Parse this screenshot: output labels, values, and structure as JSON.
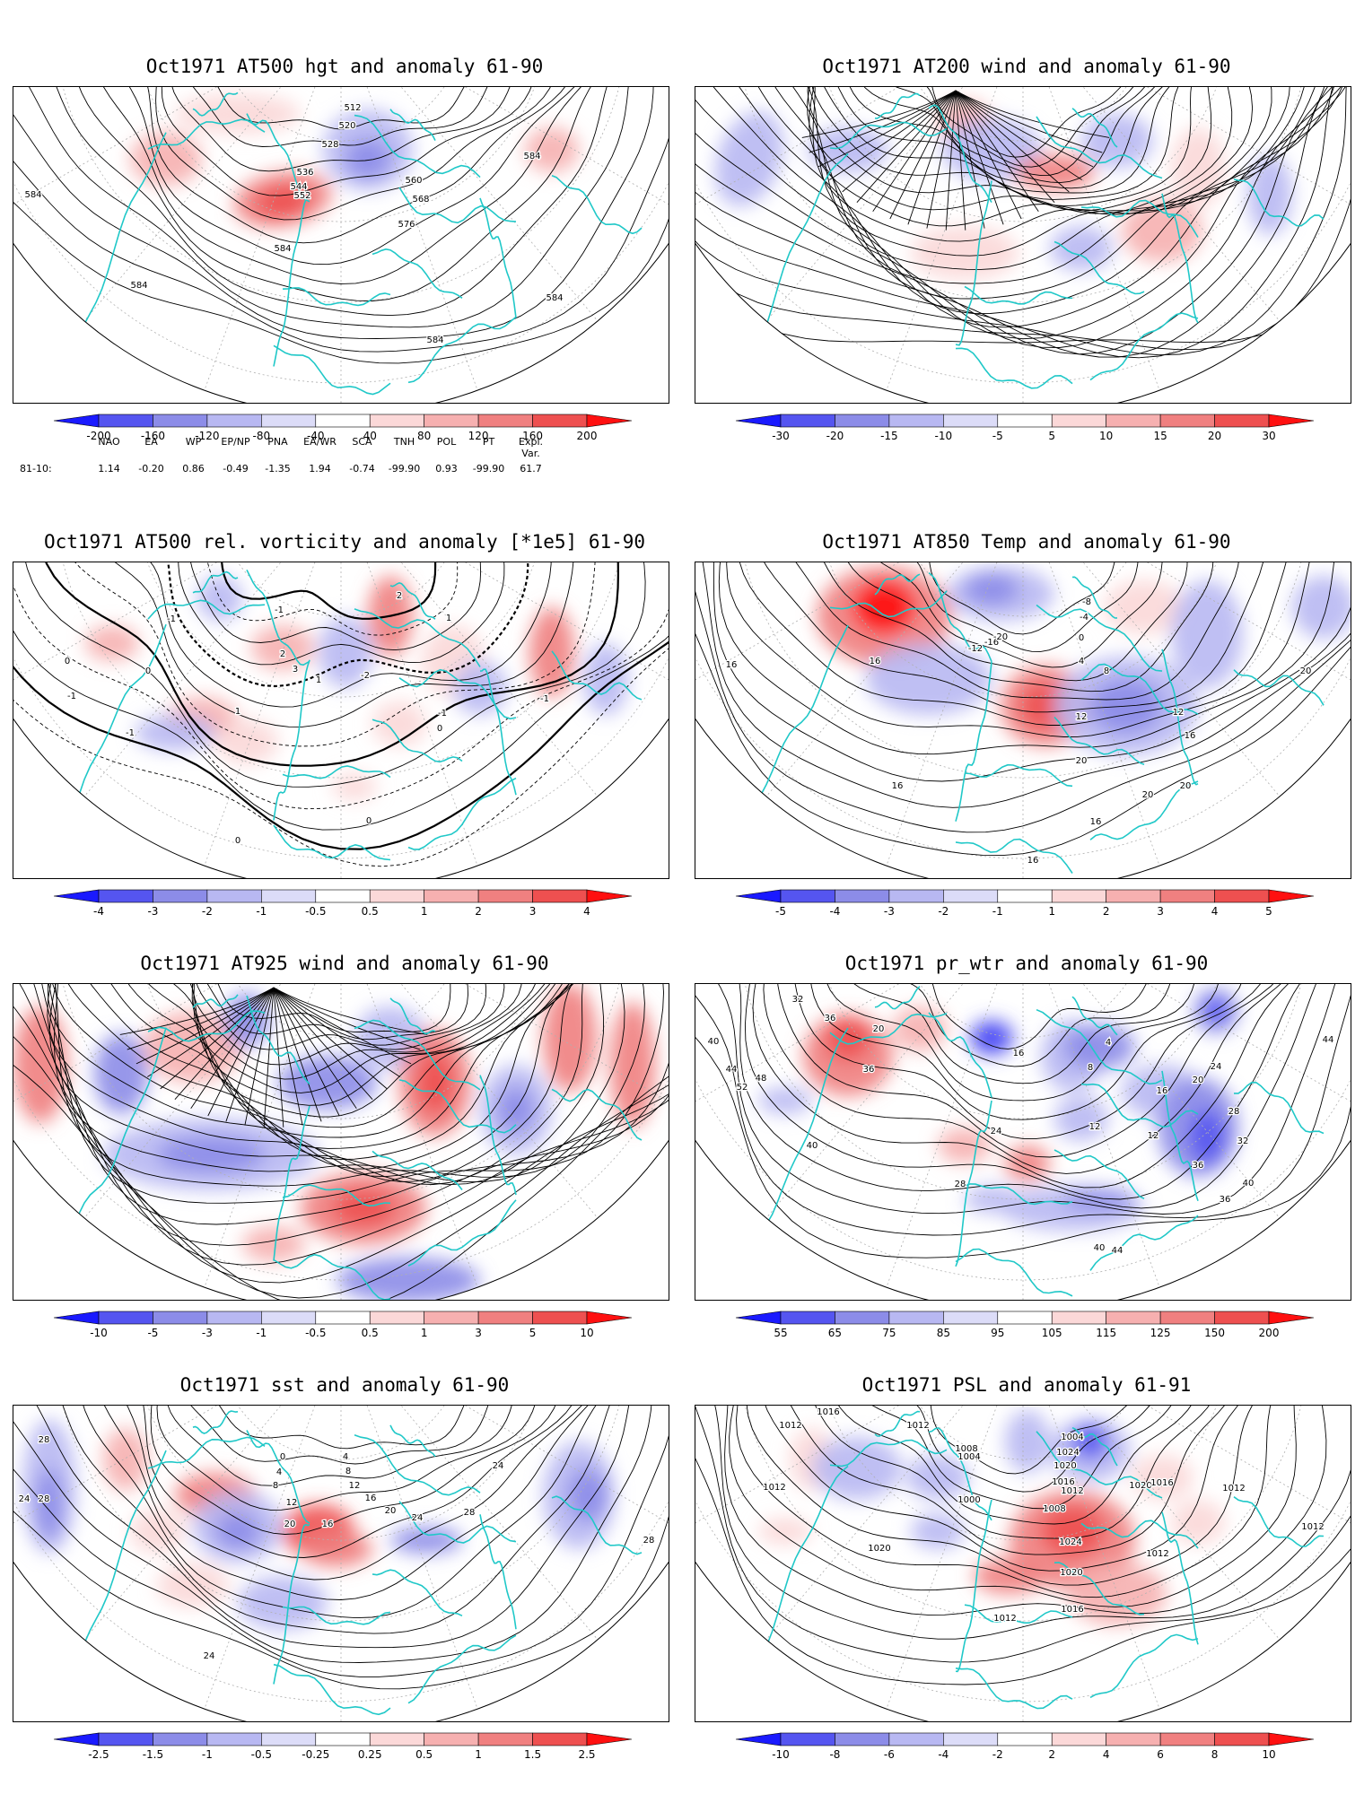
{
  "teleconnection": {
    "period_label": "81-10:",
    "headers": [
      "NAO",
      "EA",
      "WP",
      "EP/NP",
      "PNA",
      "EA/WR",
      "SCA",
      "TNH",
      "POL",
      "PT",
      "Expl. Var."
    ],
    "values": [
      "1.14",
      "-0.20",
      "0.86",
      "-0.49",
      "-1.35",
      "1.94",
      "-0.74",
      "-99.90",
      "0.93",
      "-99.90",
      "61.7"
    ]
  },
  "panels": [
    {
      "id": "p1",
      "title": "Oct1971 AT500 hgt and anomaly 61-90",
      "mode": "hgt",
      "contour_labels": [
        "512",
        "520",
        "528",
        "536",
        "544",
        "552",
        "560",
        "568",
        "576",
        "584",
        "584",
        "584",
        "584",
        "584",
        "584"
      ],
      "colorbar": {
        "ticks": [
          "-200",
          "-160",
          "-120",
          "-80",
          "-40",
          "40",
          "80",
          "120",
          "160",
          "200"
        ]
      }
    },
    {
      "id": "p2",
      "title": "Oct1971 AT200 wind and anomaly 61-90",
      "mode": "wind",
      "contour_labels": [],
      "colorbar": {
        "ticks": [
          "-30",
          "-20",
          "-15",
          "-10",
          "-5",
          "5",
          "10",
          "15",
          "20",
          "30"
        ]
      }
    },
    {
      "id": "p3",
      "title": "Oct1971 AT500 rel. vorticity and anomaly [*1e5] 61-90",
      "mode": "vort",
      "contour_labels": [
        "-1",
        "-1",
        "-1",
        "-1",
        "-2",
        "2",
        "3",
        "1",
        "1",
        "0",
        "0",
        "0",
        "0",
        "0",
        "-1",
        "-1",
        "2",
        "1"
      ],
      "colorbar": {
        "ticks": [
          "-4",
          "-3",
          "-2",
          "-1",
          "-0.5",
          "0.5",
          "1",
          "2",
          "3",
          "4"
        ]
      }
    },
    {
      "id": "p4",
      "title": "Oct1971 AT850 Temp and anomaly 61-90",
      "mode": "temp",
      "contour_labels": [
        "16",
        "16",
        "16",
        "16",
        "20",
        "20",
        "20",
        "20",
        "16",
        "12",
        "8",
        "4",
        "0",
        "-4",
        "-8",
        "-12",
        "-16",
        "-20",
        "12",
        "16"
      ],
      "colorbar": {
        "ticks": [
          "-5",
          "-4",
          "-3",
          "-2",
          "-1",
          "1",
          "2",
          "3",
          "4",
          "5"
        ]
      }
    },
    {
      "id": "p5",
      "title": "Oct1971 AT925 wind and anomaly 61-90",
      "mode": "wind2",
      "contour_labels": [],
      "colorbar": {
        "ticks": [
          "-10",
          "-5",
          "-3",
          "-1",
          "-0.5",
          "0.5",
          "1",
          "3",
          "5",
          "10"
        ]
      }
    },
    {
      "id": "p6",
      "title": "Oct1971 pr_wtr and anomaly 61-90",
      "mode": "prwtr",
      "contour_labels": [
        "32",
        "36",
        "40",
        "44",
        "48",
        "52",
        "36",
        "40",
        "20",
        "24",
        "28",
        "16",
        "12",
        "8",
        "4",
        "12",
        "16",
        "20",
        "24",
        "28",
        "32",
        "36",
        "40",
        "44",
        "36",
        "40",
        "44"
      ],
      "colorbar": {
        "ticks": [
          "55",
          "65",
          "75",
          "85",
          "95",
          "105",
          "115",
          "125",
          "150",
          "200"
        ]
      }
    },
    {
      "id": "p7",
      "title": "Oct1971 sst and anomaly 61-90",
      "mode": "sst",
      "contour_labels": [
        "28",
        "24",
        "28",
        "28",
        "24",
        "20",
        "16",
        "12",
        "8",
        "4",
        "0",
        "4",
        "8",
        "12",
        "16",
        "20",
        "24",
        "28",
        "24"
      ],
      "colorbar": {
        "ticks": [
          "-2.5",
          "-1.5",
          "-1",
          "-0.5",
          "-0.25",
          "0.25",
          "0.5",
          "1",
          "1.5",
          "2.5"
        ]
      }
    },
    {
      "id": "p8",
      "title": "Oct1971 PSL and anomaly 61-91",
      "mode": "psl",
      "contour_labels": [
        "1012",
        "1016",
        "1012",
        "1008",
        "1004",
        "1000",
        "1004",
        "1008",
        "1012",
        "1016",
        "1020",
        "1024",
        "1020",
        "1016",
        "1012",
        "1012",
        "1012",
        "1020",
        "1024",
        "1020",
        "1016",
        "1012",
        "1012"
      ],
      "colorbar": {
        "ticks": [
          "-10",
          "-8",
          "-6",
          "-4",
          "-2",
          "2",
          "4",
          "6",
          "8",
          "10"
        ]
      }
    }
  ],
  "colors": {
    "scale": [
      "#1a1aff",
      "#5555f0",
      "#8c8ce8",
      "#b8b8f2",
      "#dcdcf8",
      "#ffffff",
      "#fbd8d8",
      "#f6b0b0",
      "#f08080",
      "#ee5050",
      "#ff1010"
    ],
    "coast": "#20c8c8",
    "contour": "#000000",
    "grid": "#b0b0b0"
  }
}
